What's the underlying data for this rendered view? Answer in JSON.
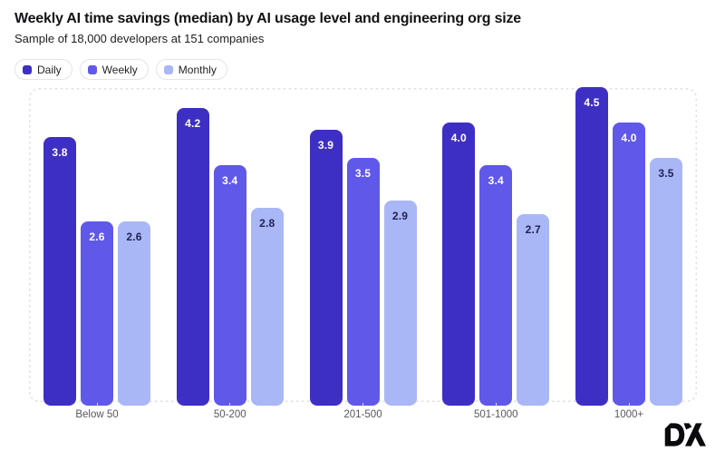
{
  "header": {
    "title": "Weekly AI time savings (median) by AI usage level and engineering org size",
    "subtitle": "Sample of 18,000 developers at 151 companies"
  },
  "chart_data": {
    "type": "bar",
    "title": "Weekly AI time savings (median) by AI usage level and engineering org size",
    "subtitle": "Sample of 18,000 developers at 151 companies",
    "categories": [
      "Below 50",
      "50-200",
      "201-500",
      "501-1000",
      "1000+"
    ],
    "series": [
      {
        "name": "Daily",
        "color": "#3e2fc4",
        "label_text_color": "#ffffff",
        "values": [
          3.8,
          4.2,
          3.9,
          4.0,
          4.5
        ]
      },
      {
        "name": "Weekly",
        "color": "#6058e8",
        "label_text_color": "#ffffff",
        "values": [
          2.6,
          3.4,
          3.5,
          3.4,
          4.0
        ]
      },
      {
        "name": "Monthly",
        "color": "#aab7f7",
        "label_text_color": "#1e2251",
        "values": [
          2.6,
          2.8,
          2.9,
          2.7,
          3.5
        ]
      }
    ],
    "ylim": [
      0,
      4.5
    ],
    "value_labels": "on-bar, one decimal",
    "grid": false,
    "legend_position": "top-left",
    "axis_border": {
      "style": "dashed",
      "color": "#dfdfe4"
    }
  },
  "footer": {
    "logo_text": "DX",
    "logo_color": "#0b0b0e"
  }
}
